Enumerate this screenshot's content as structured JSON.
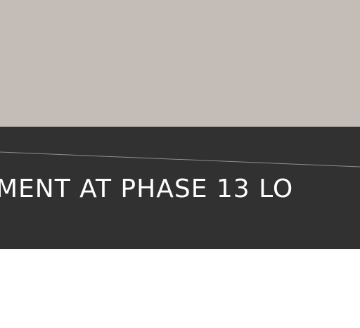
{
  "banner": {
    "text": "MENT AT PHASE 13 LO"
  },
  "colors": {
    "top_panel": "#c4bdb7",
    "banner_background": "#313131",
    "banner_text": "#ffffff",
    "banner_rule": "#8e8e8e",
    "page_background": "#ffffff"
  }
}
